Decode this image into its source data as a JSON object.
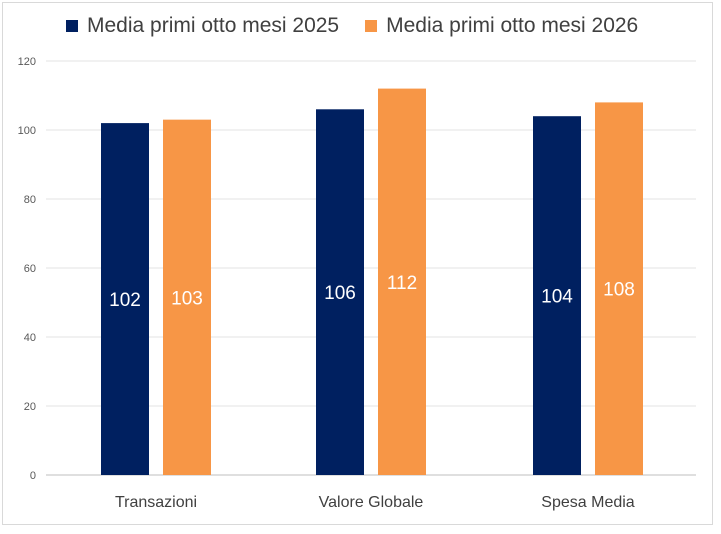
{
  "chart_data": {
    "type": "bar",
    "categories": [
      "Transazioni",
      "Valore Globale",
      "Spesa Media"
    ],
    "series": [
      {
        "name": "Media primi otto mesi 2025",
        "color": "#002060",
        "values": [
          102,
          106,
          104
        ]
      },
      {
        "name": "Media primi otto mesi 2026",
        "color": "#F79646",
        "values": [
          103,
          112,
          108
        ]
      }
    ],
    "y_ticks": [
      "0",
      "20",
      "40",
      "60",
      "80",
      "100",
      "120"
    ],
    "ylim": [
      0,
      120
    ],
    "grid": true,
    "legend_position": "top",
    "data_labels": true
  }
}
